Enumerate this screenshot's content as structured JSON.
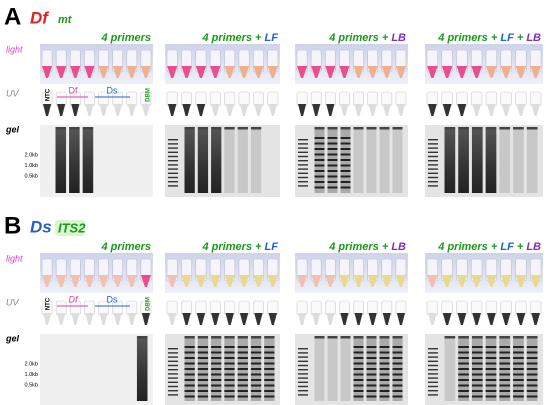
{
  "panels": [
    {
      "letter": "A",
      "species": "Df",
      "species_color": "#e0201c",
      "target": "mt",
      "target_color": "#1a9a1a",
      "row_labels": [
        "light",
        "UV",
        "gel"
      ],
      "columns": [
        [
          {
            "text": "4 primers",
            "color": "#1a9a1a"
          }
        ],
        [
          {
            "text": "4 primers +",
            "color": "#1a9a1a"
          },
          {
            "text": "LF",
            "color": "#2060d0"
          }
        ],
        [
          {
            "text": "4 primers +",
            "color": "#1a9a1a"
          },
          {
            "text": "LB",
            "color": "#8030c0"
          }
        ],
        [
          {
            "text": "4 primers +",
            "color": "#1a9a1a"
          },
          {
            "text": "LF",
            "color": "#2060d0"
          },
          {
            "text": "+",
            "color": "#1a9a1a"
          },
          {
            "text": "LB",
            "color": "#8030c0"
          }
        ]
      ],
      "lane_labels": [
        "NTC",
        "Df",
        "Ds",
        "DBM"
      ],
      "ladder_labels": [
        "2.0kb",
        "1.0kb",
        "0.5kb"
      ]
    },
    {
      "letter": "B",
      "species": "Ds",
      "species_color": "#2060d0",
      "target": "ITS2",
      "target_color": "#1a9a1a",
      "row_labels": [
        "light",
        "UV",
        "gel"
      ],
      "columns": [
        [
          {
            "text": "4 primers",
            "color": "#1a9a1a"
          }
        ],
        [
          {
            "text": "4 primers +",
            "color": "#1a9a1a"
          },
          {
            "text": "LF",
            "color": "#2060d0"
          }
        ],
        [
          {
            "text": "4 primers +",
            "color": "#1a9a1a"
          },
          {
            "text": "LB",
            "color": "#8030c0"
          }
        ],
        [
          {
            "text": "4 primers +",
            "color": "#1a9a1a"
          },
          {
            "text": "LF",
            "color": "#2060d0"
          },
          {
            "text": "+",
            "color": "#1a9a1a"
          },
          {
            "text": "LB",
            "color": "#8030c0"
          }
        ]
      ],
      "lane_labels": [
        "NTC",
        "Df",
        "Ds",
        "DBM"
      ],
      "ladder_labels": [
        "2.0kb",
        "1.0kb",
        "0.5kb"
      ]
    }
  ]
}
